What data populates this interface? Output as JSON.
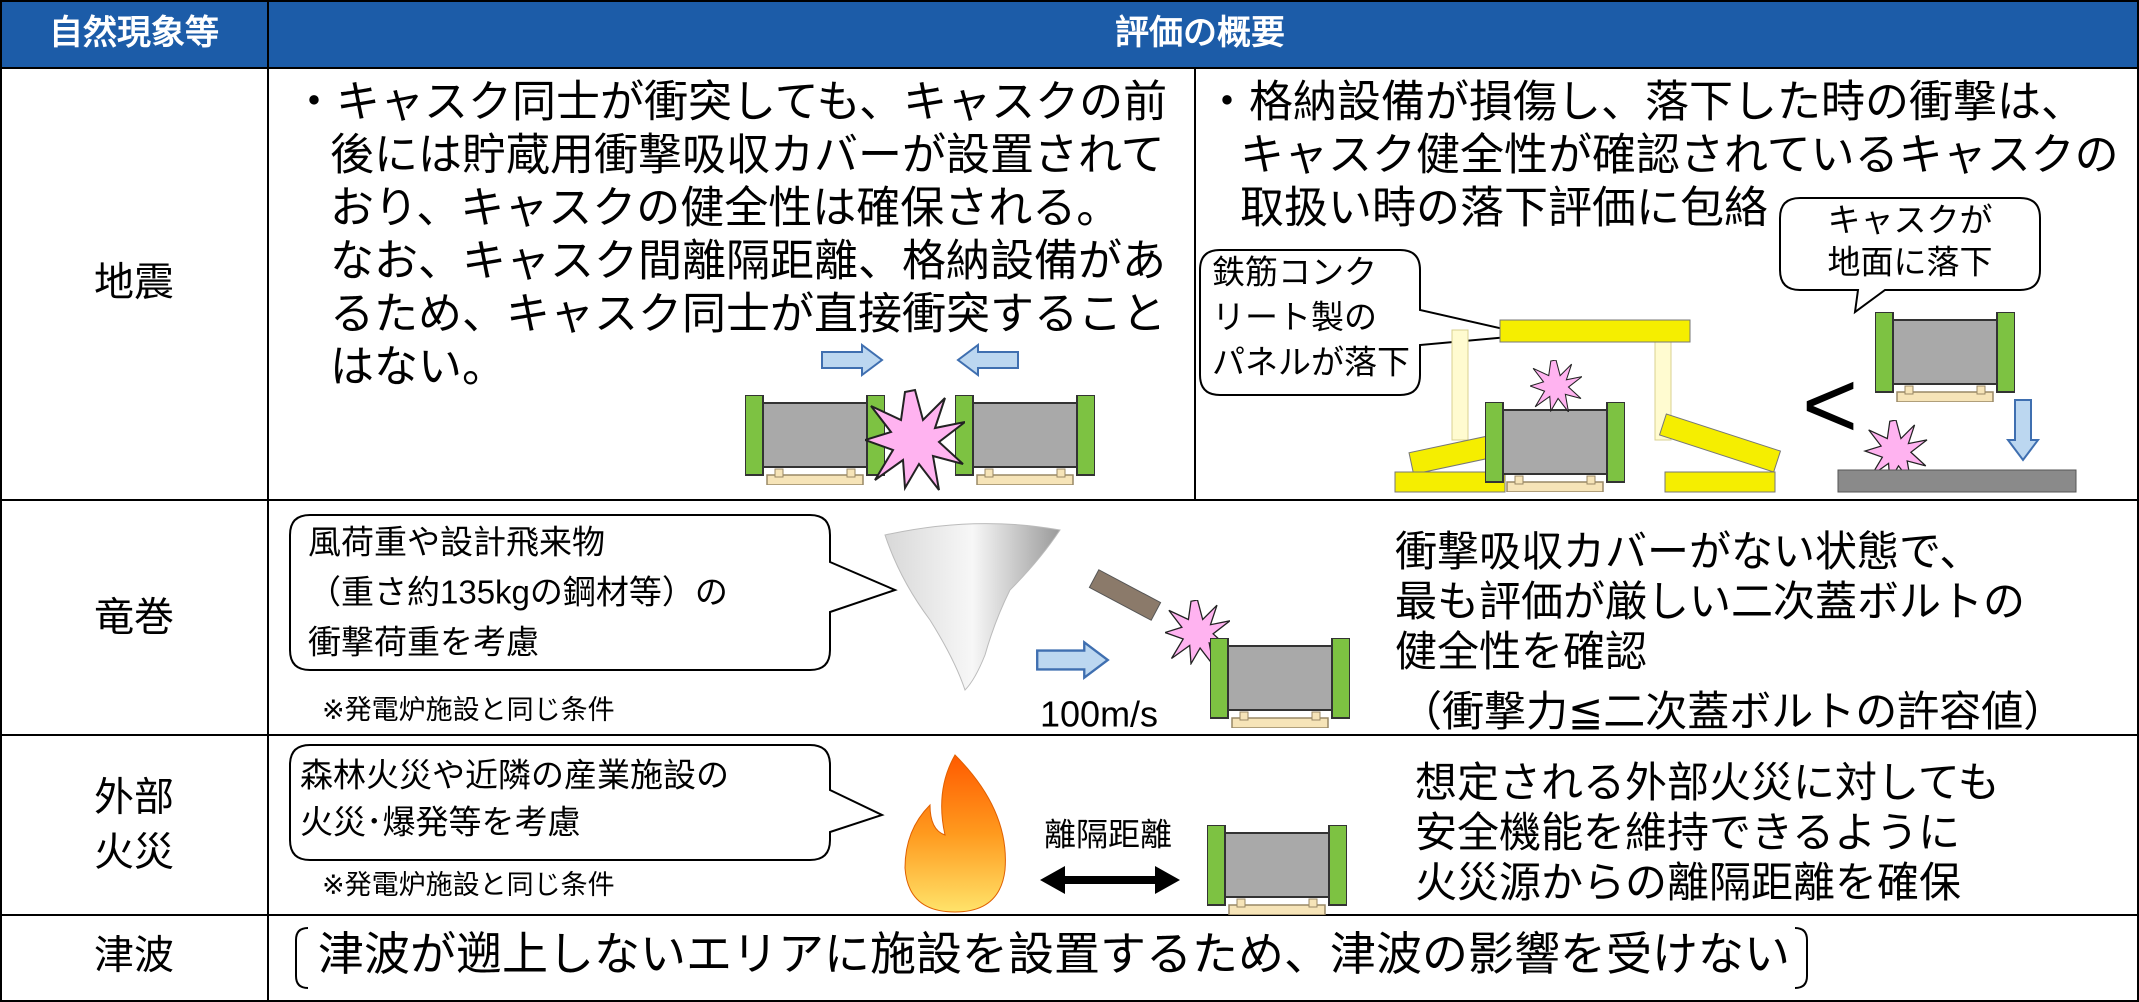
{
  "header": {
    "phenomenon": "自然現象等",
    "overview": "評価の概要"
  },
  "earthquake": {
    "label": "地震",
    "left_text": [
      "・キャスク同士が衝突しても、キャスクの前",
      "後には貯蔵用衝撃吸収カバーが設置されて",
      "おり、キャスクの健全性は確保される。",
      "なお、キャスク間離隔距離、格納設備があ",
      "るため、キャスク同士が直接衝突すること",
      "はない。"
    ],
    "right_text": [
      "・格納設備が損傷し、落下した時の衝撃は、",
      "キャスク健全性が確認されているキャスクの",
      "取扱い時の落下評価に包絡"
    ],
    "panel_callout": [
      "鉄筋コンク",
      "リート製の",
      "パネルが落下"
    ],
    "cask_callout": [
      "キャスクが",
      "地面に落下"
    ],
    "comparison": "<"
  },
  "tornado": {
    "label": "竜巻",
    "callout": [
      "風荷重や設計飛来物",
      "（重さ約135kgの鋼材等）の",
      "衝撃荷重を考慮"
    ],
    "note": "※発電炉施設と同じ条件",
    "speed": "100m/s",
    "text": [
      "衝撃吸収カバーがない状態で、",
      "最も評価が厳しい二次蓋ボルトの",
      "健全性を確認",
      "（衝撃力≦二次蓋ボルトの許容値）"
    ]
  },
  "fire": {
    "label": [
      "外部",
      "火災"
    ],
    "callout": [
      "森林火災や近隣の産業施設の",
      "火災･爆発等を考慮"
    ],
    "note": "※発電炉施設と同じ条件",
    "distance": "離隔距離",
    "text": [
      "想定される外部火災に対しても",
      "安全機能を維持できるように",
      "火災源からの離隔距離を確保"
    ]
  },
  "tsunami": {
    "label": "津波",
    "text": "津波が遡上しないエリアに施設を設置するため、津波の影響を受けない"
  }
}
